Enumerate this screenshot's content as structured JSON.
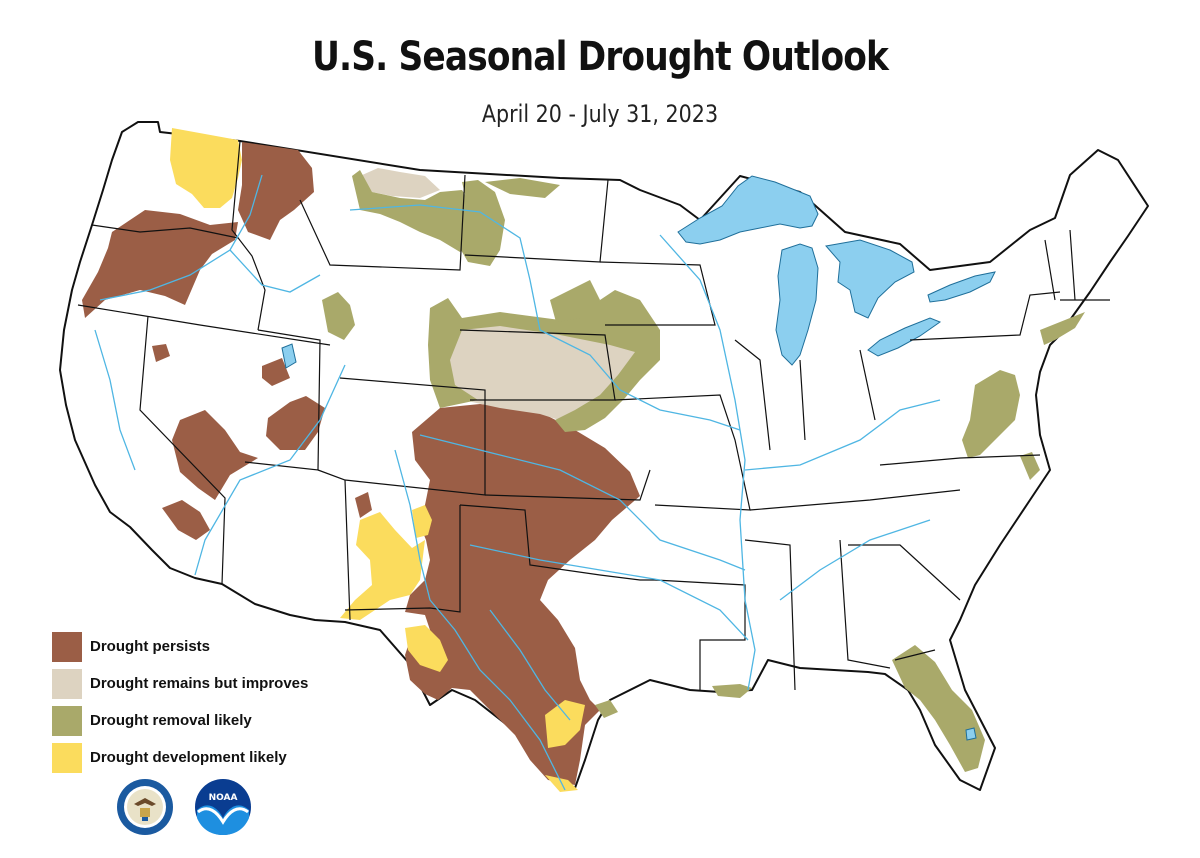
{
  "title": "U.S. Seasonal Drought Outlook",
  "subtitle": "April 20 - July 31, 2023",
  "legend": [
    {
      "label": "Drought persists",
      "color": "#9b5e46"
    },
    {
      "label": "Drought remains but improves",
      "color": "#ddd3c1"
    },
    {
      "label": "Drought removal likely",
      "color": "#a9a96a"
    },
    {
      "label": "Drought development likely",
      "color": "#fbdc5d"
    }
  ],
  "colors": {
    "water": "#8ccfef",
    "river": "#4fb6e3",
    "border": "#111111",
    "land": "#ffffff"
  },
  "logos": [
    {
      "icon": "department-of-commerce-seal-icon"
    },
    {
      "icon": "noaa-logo-icon",
      "text": "NOAA"
    }
  ]
}
